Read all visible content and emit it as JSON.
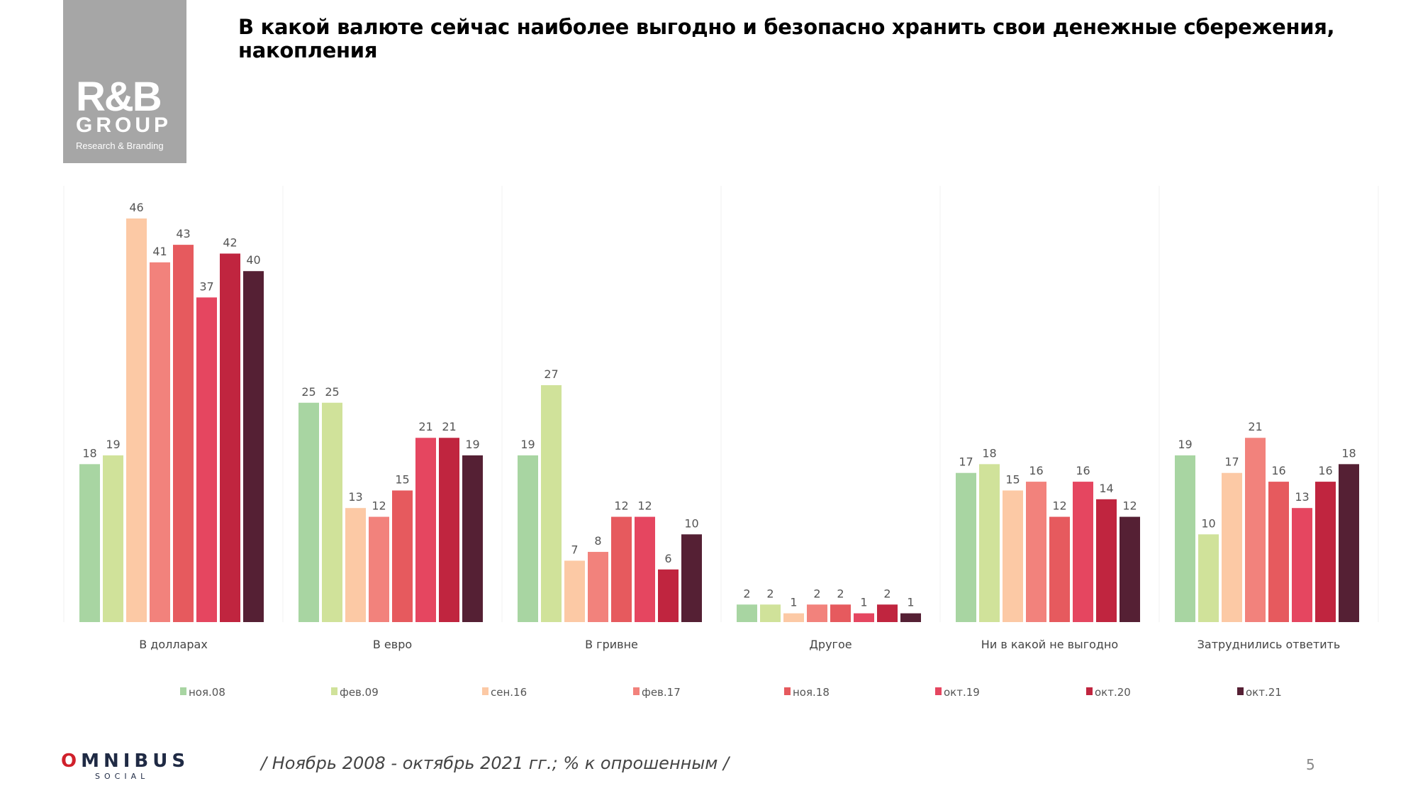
{
  "logo": {
    "line1": "R&B",
    "line2": "GROUP",
    "line3": "Research & Branding"
  },
  "title": "В какой валюте сейчас наиболее выгодно и безопасно хранить свои денежные сбережения, накопления",
  "footnote": "/ Ноябрь 2008 - октябрь 2021 гг.; % к опрошенным /",
  "page_number": "5",
  "footer_logo": {
    "name": "OMNIBUS",
    "sub": "SOCIAL"
  },
  "chart_data": {
    "type": "bar",
    "categories": [
      "В долларах",
      "В евро",
      "В гривне",
      "Другое",
      "Ни в какой не выгодно",
      "Затруднились ответить"
    ],
    "series": [
      {
        "name": "ноя.08",
        "color": "#a8d5a2",
        "values": [
          18,
          25,
          19,
          2,
          17,
          19
        ]
      },
      {
        "name": "фев.09",
        "color": "#d0e29a",
        "values": [
          19,
          25,
          27,
          2,
          18,
          10
        ]
      },
      {
        "name": "сен.16",
        "color": "#fcc9a5",
        "values": [
          46,
          13,
          7,
          1,
          15,
          17
        ]
      },
      {
        "name": "фев.17",
        "color": "#f2827c",
        "values": [
          41,
          12,
          8,
          2,
          16,
          21
        ]
      },
      {
        "name": "ноя.18",
        "color": "#e65a5e",
        "values": [
          43,
          15,
          12,
          2,
          12,
          16
        ]
      },
      {
        "name": "окт.19",
        "color": "#e54660",
        "values": [
          37,
          21,
          12,
          1,
          16,
          13
        ]
      },
      {
        "name": "окт.20",
        "color": "#c0253f",
        "values": [
          42,
          21,
          6,
          2,
          14,
          16
        ]
      },
      {
        "name": "окт.21",
        "color": "#552034",
        "values": [
          40,
          19,
          10,
          1,
          12,
          18
        ]
      }
    ],
    "ylim": [
      0,
      46
    ],
    "grid": false,
    "legend": "bottom",
    "data_labels": true
  }
}
